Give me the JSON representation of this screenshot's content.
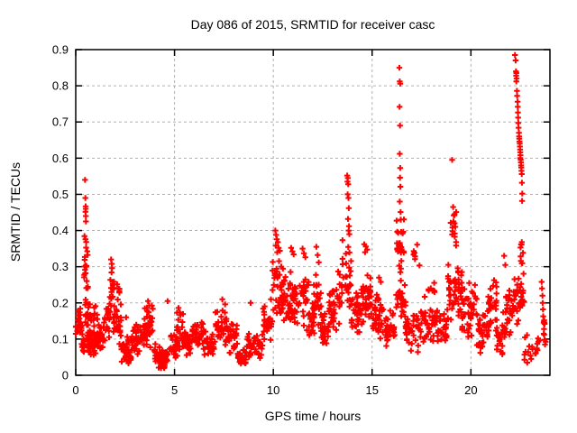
{
  "chart_data": {
    "type": "scatter",
    "title": "Day 086 of 2015, SRMTID for receiver casc",
    "xlabel": "GPS time / hours",
    "ylabel": "SRMTID / TECUs",
    "xlim": [
      0,
      24
    ],
    "ylim": [
      0,
      0.9
    ],
    "xticks": [
      "0",
      "5",
      "10",
      "15",
      "20"
    ],
    "yticks": [
      "0",
      "0.1",
      "0.2",
      "0.3",
      "0.4",
      "0.5",
      "0.6",
      "0.7",
      "0.8",
      "0.9"
    ],
    "grid": true,
    "grid_color": "#b0b0b0",
    "border_color": "#000000",
    "background_color": "#ffffff",
    "marker": {
      "shape": "plus",
      "color": "#ff0000",
      "size": 6.4
    },
    "series_name": "SRMTID",
    "band_segments": [
      [
        0.0,
        0.3,
        28,
        0.08,
        0.2
      ],
      [
        0.3,
        0.48,
        18,
        0.05,
        0.13
      ],
      [
        0.42,
        0.62,
        22,
        0.2,
        0.42
      ],
      [
        0.48,
        0.8,
        22,
        0.1,
        0.22
      ],
      [
        0.6,
        1.05,
        45,
        0.04,
        0.13
      ],
      [
        0.8,
        1.1,
        10,
        0.13,
        0.2
      ],
      [
        1.05,
        1.45,
        32,
        0.06,
        0.15
      ],
      [
        1.45,
        1.75,
        22,
        0.09,
        0.21
      ],
      [
        1.7,
        1.95,
        16,
        0.17,
        0.3
      ],
      [
        1.9,
        2.3,
        28,
        0.08,
        0.2
      ],
      [
        2.02,
        2.22,
        6,
        0.2,
        0.26
      ],
      [
        2.3,
        2.85,
        38,
        0.03,
        0.11
      ],
      [
        2.85,
        3.25,
        28,
        0.05,
        0.15
      ],
      [
        3.25,
        3.6,
        22,
        0.06,
        0.17
      ],
      [
        3.55,
        3.95,
        28,
        0.07,
        0.2
      ],
      [
        3.95,
        4.35,
        32,
        0.015,
        0.09
      ],
      [
        4.3,
        4.75,
        28,
        0.01,
        0.07
      ],
      [
        4.75,
        5.15,
        26,
        0.04,
        0.12
      ],
      [
        5.1,
        5.45,
        20,
        0.06,
        0.18
      ],
      [
        5.4,
        5.9,
        30,
        0.05,
        0.13
      ],
      [
        5.9,
        6.45,
        32,
        0.07,
        0.16
      ],
      [
        6.45,
        7.05,
        32,
        0.05,
        0.13
      ],
      [
        7.05,
        7.75,
        38,
        0.07,
        0.19
      ],
      [
        7.75,
        8.2,
        26,
        0.05,
        0.15
      ],
      [
        8.2,
        8.65,
        26,
        0.02,
        0.08
      ],
      [
        8.65,
        9.45,
        40,
        0.04,
        0.12
      ],
      [
        9.45,
        9.95,
        28,
        0.08,
        0.2
      ],
      [
        9.95,
        10.45,
        34,
        0.14,
        0.33
      ],
      [
        10.45,
        10.9,
        32,
        0.12,
        0.3
      ],
      [
        10.85,
        11.3,
        28,
        0.12,
        0.28
      ],
      [
        11.3,
        11.8,
        28,
        0.12,
        0.31
      ],
      [
        11.8,
        12.1,
        18,
        0.08,
        0.2
      ],
      [
        12.05,
        12.45,
        26,
        0.1,
        0.29
      ],
      [
        12.4,
        12.8,
        26,
        0.07,
        0.18
      ],
      [
        12.8,
        13.4,
        38,
        0.1,
        0.27
      ],
      [
        13.45,
        13.95,
        32,
        0.15,
        0.38
      ],
      [
        13.95,
        14.45,
        32,
        0.1,
        0.24
      ],
      [
        14.45,
        15.0,
        36,
        0.13,
        0.3
      ],
      [
        15.0,
        15.6,
        36,
        0.09,
        0.23
      ],
      [
        15.6,
        16.15,
        32,
        0.07,
        0.19
      ],
      [
        16.22,
        16.62,
        28,
        0.28,
        0.44
      ],
      [
        16.2,
        16.7,
        24,
        0.13,
        0.28
      ],
      [
        16.65,
        17.5,
        40,
        0.06,
        0.19
      ],
      [
        17.0,
        17.45,
        7,
        0.29,
        0.37
      ],
      [
        17.5,
        18.3,
        40,
        0.08,
        0.22
      ],
      [
        17.85,
        18.3,
        8,
        0.21,
        0.26
      ],
      [
        18.3,
        18.78,
        24,
        0.07,
        0.18
      ],
      [
        18.8,
        19.4,
        34,
        0.13,
        0.33
      ],
      [
        18.95,
        19.3,
        9,
        0.33,
        0.47
      ],
      [
        19.3,
        19.55,
        12,
        0.15,
        0.31
      ],
      [
        19.4,
        20.05,
        32,
        0.1,
        0.26
      ],
      [
        19.9,
        20.3,
        14,
        0.13,
        0.28
      ],
      [
        20.3,
        20.85,
        32,
        0.05,
        0.18
      ],
      [
        20.85,
        21.3,
        30,
        0.09,
        0.28
      ],
      [
        21.3,
        21.75,
        28,
        0.04,
        0.18
      ],
      [
        21.75,
        22.15,
        24,
        0.1,
        0.26
      ],
      [
        22.15,
        22.45,
        16,
        0.14,
        0.29
      ],
      [
        22.4,
        22.7,
        18,
        0.15,
        0.29
      ],
      [
        22.45,
        22.65,
        8,
        0.3,
        0.4
      ],
      [
        22.7,
        23.5,
        16,
        0.03,
        0.12
      ],
      [
        23.55,
        23.8,
        6,
        0.08,
        0.2
      ]
    ],
    "outlier_points": [
      [
        0.47,
        0.54
      ],
      [
        0.49,
        0.49
      ],
      [
        0.5,
        0.467
      ],
      [
        0.505,
        0.46
      ],
      [
        0.495,
        0.452
      ],
      [
        0.51,
        0.44
      ],
      [
        0.515,
        0.425
      ],
      [
        1.79,
        0.32
      ],
      [
        1.82,
        0.308
      ],
      [
        1.84,
        0.296
      ],
      [
        2.55,
        0.16
      ],
      [
        3.5,
        0.185
      ],
      [
        3.66,
        0.205
      ],
      [
        3.72,
        0.193
      ],
      [
        4.65,
        0.205
      ],
      [
        5.2,
        0.186
      ],
      [
        5.27,
        0.174
      ],
      [
        7.42,
        0.21
      ],
      [
        7.56,
        0.196
      ],
      [
        8.85,
        0.2
      ],
      [
        9.88,
        0.21
      ],
      [
        10.1,
        0.4
      ],
      [
        10.14,
        0.388
      ],
      [
        10.18,
        0.376
      ],
      [
        10.23,
        0.368
      ],
      [
        10.12,
        0.358
      ],
      [
        10.27,
        0.352
      ],
      [
        10.33,
        0.344
      ],
      [
        10.2,
        0.34
      ],
      [
        10.9,
        0.352
      ],
      [
        10.97,
        0.342
      ],
      [
        11.03,
        0.334
      ],
      [
        11.48,
        0.35
      ],
      [
        11.55,
        0.337
      ],
      [
        11.62,
        0.326
      ],
      [
        12.18,
        0.355
      ],
      [
        12.24,
        0.332
      ],
      [
        12.3,
        0.312
      ],
      [
        13.28,
        0.287
      ],
      [
        13.36,
        0.278
      ],
      [
        13.74,
        0.552
      ],
      [
        13.77,
        0.545
      ],
      [
        13.75,
        0.535
      ],
      [
        13.79,
        0.528
      ],
      [
        13.76,
        0.5
      ],
      [
        13.8,
        0.49
      ],
      [
        13.82,
        0.462
      ],
      [
        13.78,
        0.432
      ],
      [
        13.83,
        0.412
      ],
      [
        13.81,
        0.4
      ],
      [
        13.85,
        0.39
      ],
      [
        14.6,
        0.362
      ],
      [
        14.68,
        0.356
      ],
      [
        14.75,
        0.347
      ],
      [
        14.64,
        0.34
      ],
      [
        15.35,
        0.27
      ],
      [
        15.44,
        0.258
      ],
      [
        16.38,
        0.85
      ],
      [
        16.4,
        0.812
      ],
      [
        16.42,
        0.806
      ],
      [
        16.39,
        0.742
      ],
      [
        16.41,
        0.69
      ],
      [
        16.4,
        0.612
      ],
      [
        16.42,
        0.573
      ],
      [
        16.41,
        0.546
      ],
      [
        16.43,
        0.521
      ],
      [
        16.4,
        0.48
      ],
      [
        16.44,
        0.451
      ],
      [
        16.45,
        0.43
      ],
      [
        19.05,
        0.595
      ],
      [
        19.1,
        0.465
      ],
      [
        19.16,
        0.442
      ],
      [
        19.12,
        0.425
      ],
      [
        19.21,
        0.41
      ],
      [
        19.07,
        0.398
      ],
      [
        19.18,
        0.383
      ],
      [
        19.25,
        0.368
      ],
      [
        21.68,
        0.33
      ],
      [
        21.74,
        0.305
      ],
      [
        22.6,
        0.31
      ],
      [
        22.23,
        0.885
      ],
      [
        22.26,
        0.87
      ],
      [
        22.28,
        0.84
      ],
      [
        22.3,
        0.835
      ],
      [
        22.29,
        0.828
      ],
      [
        22.31,
        0.82
      ],
      [
        22.3,
        0.812
      ],
      [
        22.33,
        0.786
      ],
      [
        22.34,
        0.772
      ],
      [
        22.36,
        0.756
      ],
      [
        22.37,
        0.742
      ],
      [
        22.38,
        0.726
      ],
      [
        22.39,
        0.712
      ],
      [
        22.4,
        0.697
      ],
      [
        22.41,
        0.684
      ],
      [
        22.43,
        0.67
      ],
      [
        22.44,
        0.66
      ],
      [
        22.45,
        0.654
      ],
      [
        22.46,
        0.646
      ],
      [
        22.47,
        0.64
      ],
      [
        22.48,
        0.632
      ],
      [
        22.49,
        0.624
      ],
      [
        22.5,
        0.616
      ],
      [
        22.51,
        0.608
      ],
      [
        22.5,
        0.6
      ],
      [
        22.52,
        0.595
      ],
      [
        22.53,
        0.588
      ],
      [
        22.54,
        0.58
      ],
      [
        22.55,
        0.574
      ],
      [
        22.56,
        0.565
      ],
      [
        22.57,
        0.556
      ],
      [
        22.58,
        0.532
      ],
      [
        22.6,
        0.502
      ],
      [
        22.59,
        0.482
      ],
      [
        22.85,
        0.035
      ],
      [
        23.05,
        0.045
      ],
      [
        23.25,
        0.06
      ],
      [
        22.95,
        0.08
      ],
      [
        23.58,
        0.258
      ],
      [
        23.6,
        0.24
      ],
      [
        23.62,
        0.22
      ],
      [
        23.63,
        0.2
      ],
      [
        23.65,
        0.182
      ],
      [
        23.66,
        0.163
      ],
      [
        23.68,
        0.145
      ],
      [
        23.7,
        0.128
      ],
      [
        23.71,
        0.112
      ],
      [
        23.73,
        0.098
      ],
      [
        23.75,
        0.085
      ]
    ]
  }
}
